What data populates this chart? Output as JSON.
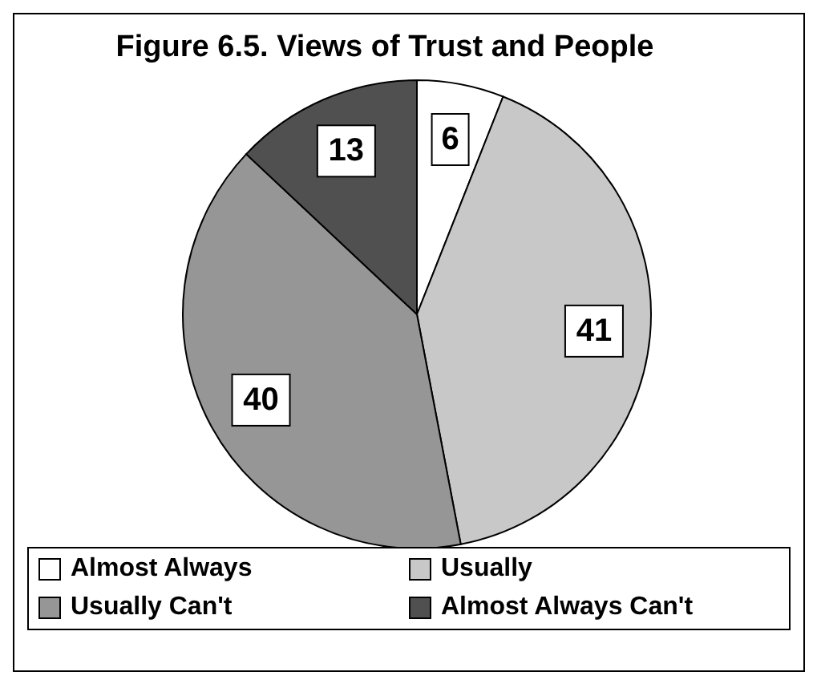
{
  "chart_data": {
    "type": "pie",
    "title": "Figure 6.5. Views of Trust and People",
    "categories": [
      "Almost Always",
      "Usually",
      "Usually Can't",
      "Almost Always Can't"
    ],
    "values": [
      6,
      41,
      40,
      13
    ],
    "colors": [
      "#ffffff",
      "#c8c8c8",
      "#969696",
      "#505050"
    ],
    "data_labels": true,
    "legend": "bottom"
  }
}
